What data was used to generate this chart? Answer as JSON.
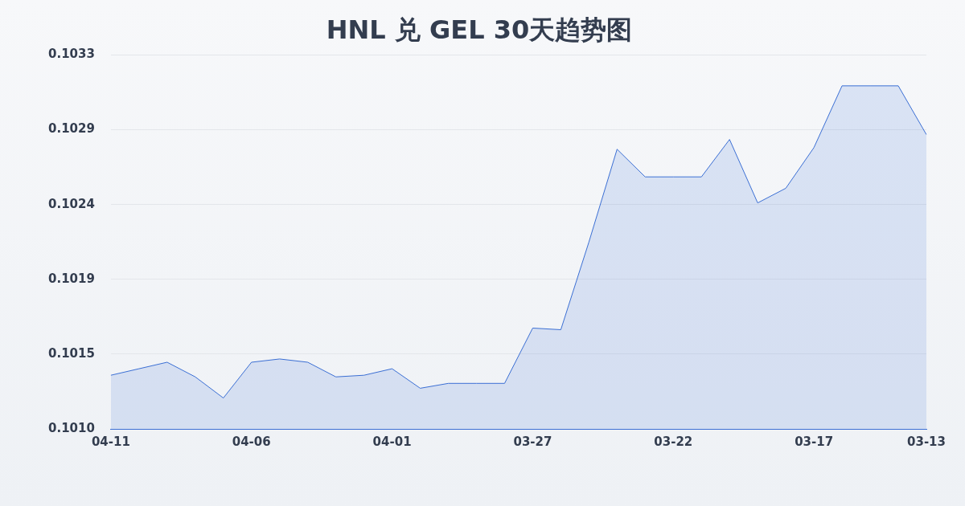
{
  "chart_data": {
    "type": "area",
    "title": "HNL 兑 GEL 30天趋势图",
    "categories": [
      "04-11",
      null,
      null,
      null,
      null,
      "04-06",
      null,
      null,
      null,
      null,
      "04-01",
      null,
      null,
      null,
      null,
      "03-27",
      null,
      null,
      null,
      null,
      "03-22",
      null,
      null,
      null,
      null,
      "03-17",
      null,
      null,
      null,
      "03-13"
    ],
    "series": [
      {
        "color": "#3b6fd4",
        "values": [
          0.10134,
          0.10138,
          0.10142,
          0.10133,
          0.1012,
          0.10142,
          0.10144,
          0.10142,
          0.10133,
          0.10134,
          0.10138,
          0.10126,
          0.10129,
          0.10129,
          0.10129,
          0.10163,
          0.10162,
          0.10216,
          0.10273,
          0.10256,
          0.10256,
          0.10256,
          0.10279,
          0.1024,
          0.10249,
          0.10274,
          0.10312,
          0.10312,
          0.10312,
          0.10282
        ]
      }
    ],
    "ylim": [
      0.10101,
      0.10331
    ],
    "yticks": [
      {
        "value": 0.10101,
        "label": "0.1010"
      },
      {
        "value": 0.10147,
        "label": "0.1015"
      },
      {
        "value": 0.10193,
        "label": "0.1019"
      },
      {
        "value": 0.10239,
        "label": "0.1024"
      },
      {
        "value": 0.10285,
        "label": "0.1029"
      },
      {
        "value": 0.10331,
        "label": "0.1033"
      }
    ],
    "grid": "y",
    "legend": false,
    "marker": "none"
  }
}
